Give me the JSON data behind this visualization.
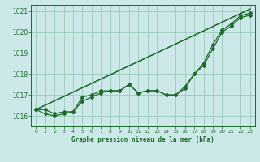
{
  "title": "Graphe pression niveau de la mer (hPa)",
  "xlabel_hours": [
    0,
    1,
    2,
    3,
    4,
    5,
    6,
    7,
    8,
    9,
    10,
    11,
    12,
    13,
    14,
    15,
    16,
    17,
    18,
    19,
    20,
    21,
    22,
    23
  ],
  "ylim": [
    1015.5,
    1021.3
  ],
  "xlim": [
    -0.5,
    23.5
  ],
  "yticks": [
    1016,
    1017,
    1018,
    1019,
    1020,
    1021
  ],
  "background_color": "#cce8e8",
  "grid_color": "#99ccbb",
  "line_color": "#1a6b2a",
  "series_data": [
    [
      1016.3,
      1016.3,
      1016.1,
      1016.2,
      1016.2,
      1016.9,
      1017.0,
      1017.2,
      1017.2,
      1017.2,
      1017.5,
      1017.1,
      1017.2,
      1017.2,
      1017.0,
      1017.0,
      1017.4,
      1018.0,
      1018.5,
      1019.4,
      1020.1,
      1020.4,
      1020.8,
      1020.9
    ],
    [
      1016.3,
      1016.1,
      1016.0,
      1016.1,
      1016.2,
      1016.7,
      1016.9,
      1017.1,
      1017.2,
      1017.2,
      1017.5,
      1017.1,
      1017.2,
      1017.2,
      1017.0,
      1017.0,
      1017.3,
      1018.0,
      1018.4,
      1019.2,
      1020.0,
      1020.3,
      1020.7,
      1020.8
    ]
  ],
  "trend_lines": [
    [
      1016.3,
      1021.1
    ],
    [
      1016.3,
      1021.1
    ]
  ],
  "trend_x": [
    0,
    23
  ]
}
